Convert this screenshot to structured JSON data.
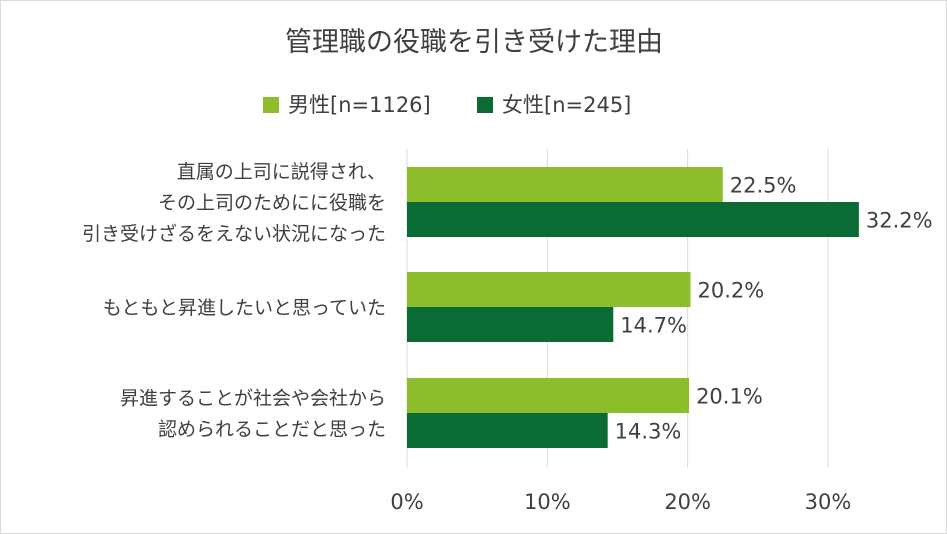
{
  "chart_data": {
    "type": "bar",
    "orientation": "horizontal",
    "title": "管理職の役職を引き受けた理由",
    "categories": [
      [
        "直属の上司に説得され、",
        "その上司のためにに役職を",
        "引き受けざるをえない状況になった"
      ],
      [
        "もともと昇進したいと思っていた"
      ],
      [
        "昇進することが社会や会社から",
        "認められることだと思った"
      ]
    ],
    "series": [
      {
        "name": "男性[n=1126]",
        "color": "#8cbd2b",
        "values": [
          22.5,
          20.2,
          20.1
        ],
        "labels": [
          "22.5%",
          "20.2%",
          "20.1%"
        ]
      },
      {
        "name": "女性[n=245]",
        "color": "#0a6b35",
        "values": [
          32.2,
          14.7,
          14.3
        ],
        "labels": [
          "32.2%",
          "14.7%",
          "14.3%"
        ]
      }
    ],
    "xlim": [
      0,
      30
    ],
    "xticks": [
      0,
      10,
      20,
      30
    ],
    "xtick_labels": [
      "0%",
      "10%",
      "20%",
      "30%"
    ],
    "grid": true,
    "gridline_color": "#d9d9d9",
    "legend_position": "top"
  }
}
